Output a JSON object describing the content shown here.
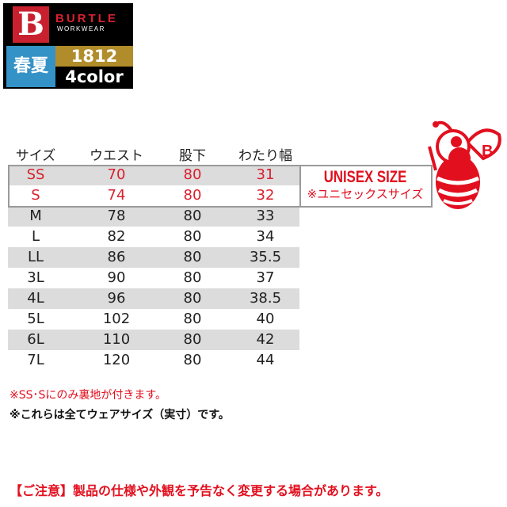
{
  "logo": {
    "mark": "B",
    "brand": "BURTLE",
    "sub": "WORKWEAR",
    "season": "春夏",
    "model": "1812",
    "colors": "4color"
  },
  "table": {
    "headers": [
      "サイズ",
      "ウエスト",
      "股下",
      "わたり幅"
    ],
    "rows": [
      [
        "SS",
        "70",
        "80",
        "31"
      ],
      [
        "S",
        "74",
        "80",
        "32"
      ],
      [
        "M",
        "78",
        "80",
        "33"
      ],
      [
        "L",
        "82",
        "80",
        "34"
      ],
      [
        "LL",
        "86",
        "80",
        "35.5"
      ],
      [
        "3L",
        "90",
        "80",
        "37"
      ],
      [
        "4L",
        "96",
        "80",
        "38.5"
      ],
      [
        "5L",
        "102",
        "80",
        "40"
      ],
      [
        "6L",
        "110",
        "80",
        "42"
      ],
      [
        "7L",
        "120",
        "80",
        "44"
      ]
    ]
  },
  "unisex": {
    "title": "UNISEX SIZE",
    "subtitle": "※ユニセックスサイズ"
  },
  "notes": [
    "※SS･Sにのみ裏地が付きます。",
    "※これらは全てウェアサイズ（実寸）です。"
  ],
  "caution": "【ご注意】製品の仕様や外観を予告なく変更する場合があります。",
  "colors": {
    "accent_red": "#e2101f",
    "row_gray": "#dcdcdc",
    "season_blue": "#3592c6",
    "model_gold": "#b18c2a"
  },
  "mascot": "bee-icon"
}
